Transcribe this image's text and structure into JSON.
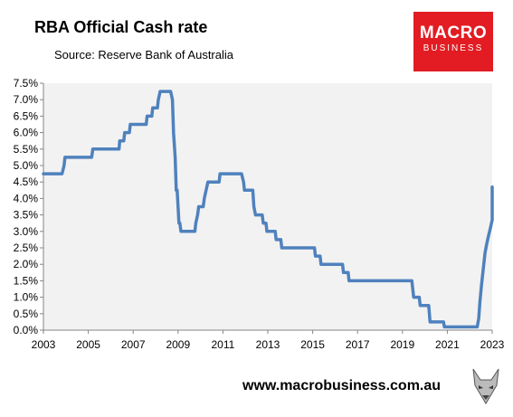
{
  "header": {
    "title": "RBA Official Cash rate",
    "source": "Source: Reserve Bank of Australia"
  },
  "logo": {
    "line1": "MACRO",
    "line2": "BUSINESS"
  },
  "footer": {
    "url": "www.macrobusiness.com.au"
  },
  "fox_icon": "fox-head-icon",
  "colors": {
    "line": "#4f81bd",
    "plot_bg": "#f2f2f2",
    "logo_bg": "#e21c22"
  },
  "chart_data": {
    "type": "line",
    "title": "RBA Official Cash rate",
    "xlabel": "",
    "ylabel": "",
    "xlim": [
      2003,
      2023
    ],
    "ylim": [
      0,
      7.5
    ],
    "grid": false,
    "x_ticks": [
      "2003",
      "2005",
      "2007",
      "2009",
      "2011",
      "2013",
      "2015",
      "2017",
      "2019",
      "2021",
      "2023"
    ],
    "y_ticks": [
      "0.0%",
      "0.5%",
      "1.0%",
      "1.5%",
      "2.0%",
      "2.5%",
      "3.0%",
      "3.5%",
      "4.0%",
      "4.5%",
      "5.0%",
      "5.5%",
      "6.0%",
      "6.5%",
      "7.0%",
      "7.5%"
    ],
    "series": [
      {
        "values": [
          [
            2003.0,
            4.75
          ],
          [
            2003.83,
            4.75
          ],
          [
            2003.92,
            5.0
          ],
          [
            2003.96,
            5.25
          ],
          [
            2005.15,
            5.25
          ],
          [
            2005.2,
            5.5
          ],
          [
            2006.37,
            5.5
          ],
          [
            2006.4,
            5.75
          ],
          [
            2006.58,
            5.75
          ],
          [
            2006.62,
            6.0
          ],
          [
            2006.83,
            6.0
          ],
          [
            2006.87,
            6.25
          ],
          [
            2007.58,
            6.25
          ],
          [
            2007.62,
            6.5
          ],
          [
            2007.83,
            6.5
          ],
          [
            2007.87,
            6.75
          ],
          [
            2008.08,
            6.75
          ],
          [
            2008.12,
            7.0
          ],
          [
            2008.2,
            7.25
          ],
          [
            2008.67,
            7.25
          ],
          [
            2008.75,
            7.0
          ],
          [
            2008.8,
            6.0
          ],
          [
            2008.87,
            5.25
          ],
          [
            2008.92,
            4.25
          ],
          [
            2008.96,
            4.25
          ],
          [
            2009.04,
            3.25
          ],
          [
            2009.08,
            3.25
          ],
          [
            2009.13,
            3.0
          ],
          [
            2009.75,
            3.0
          ],
          [
            2009.79,
            3.25
          ],
          [
            2009.87,
            3.5
          ],
          [
            2009.92,
            3.75
          ],
          [
            2010.12,
            3.75
          ],
          [
            2010.17,
            4.0
          ],
          [
            2010.25,
            4.25
          ],
          [
            2010.33,
            4.5
          ],
          [
            2010.83,
            4.5
          ],
          [
            2010.87,
            4.75
          ],
          [
            2011.83,
            4.75
          ],
          [
            2011.92,
            4.5
          ],
          [
            2011.96,
            4.25
          ],
          [
            2012.33,
            4.25
          ],
          [
            2012.38,
            3.75
          ],
          [
            2012.45,
            3.5
          ],
          [
            2012.75,
            3.5
          ],
          [
            2012.8,
            3.25
          ],
          [
            2012.92,
            3.25
          ],
          [
            2012.96,
            3.0
          ],
          [
            2013.33,
            3.0
          ],
          [
            2013.37,
            2.75
          ],
          [
            2013.58,
            2.75
          ],
          [
            2013.62,
            2.5
          ],
          [
            2015.08,
            2.5
          ],
          [
            2015.12,
            2.25
          ],
          [
            2015.33,
            2.25
          ],
          [
            2015.37,
            2.0
          ],
          [
            2016.33,
            2.0
          ],
          [
            2016.37,
            1.75
          ],
          [
            2016.58,
            1.75
          ],
          [
            2016.62,
            1.5
          ],
          [
            2019.42,
            1.5
          ],
          [
            2019.46,
            1.25
          ],
          [
            2019.5,
            1.0
          ],
          [
            2019.75,
            1.0
          ],
          [
            2019.79,
            0.75
          ],
          [
            2020.17,
            0.75
          ],
          [
            2020.2,
            0.5
          ],
          [
            2020.23,
            0.25
          ],
          [
            2020.83,
            0.25
          ],
          [
            2020.87,
            0.1
          ],
          [
            2022.33,
            0.1
          ],
          [
            2022.4,
            0.35
          ],
          [
            2022.45,
            0.85
          ],
          [
            2022.52,
            1.35
          ],
          [
            2022.6,
            1.85
          ],
          [
            2022.68,
            2.35
          ],
          [
            2022.75,
            2.6
          ],
          [
            2022.83,
            2.85
          ],
          [
            2022.92,
            3.1
          ],
          [
            2023.0,
            3.35
          ],
          [
            2023.08,
            3.6
          ],
          [
            2023.17,
            3.6
          ],
          [
            2023.25,
            3.85
          ],
          [
            2023.42,
            4.1
          ],
          [
            2023.55,
            4.35
          ]
        ]
      }
    ]
  }
}
